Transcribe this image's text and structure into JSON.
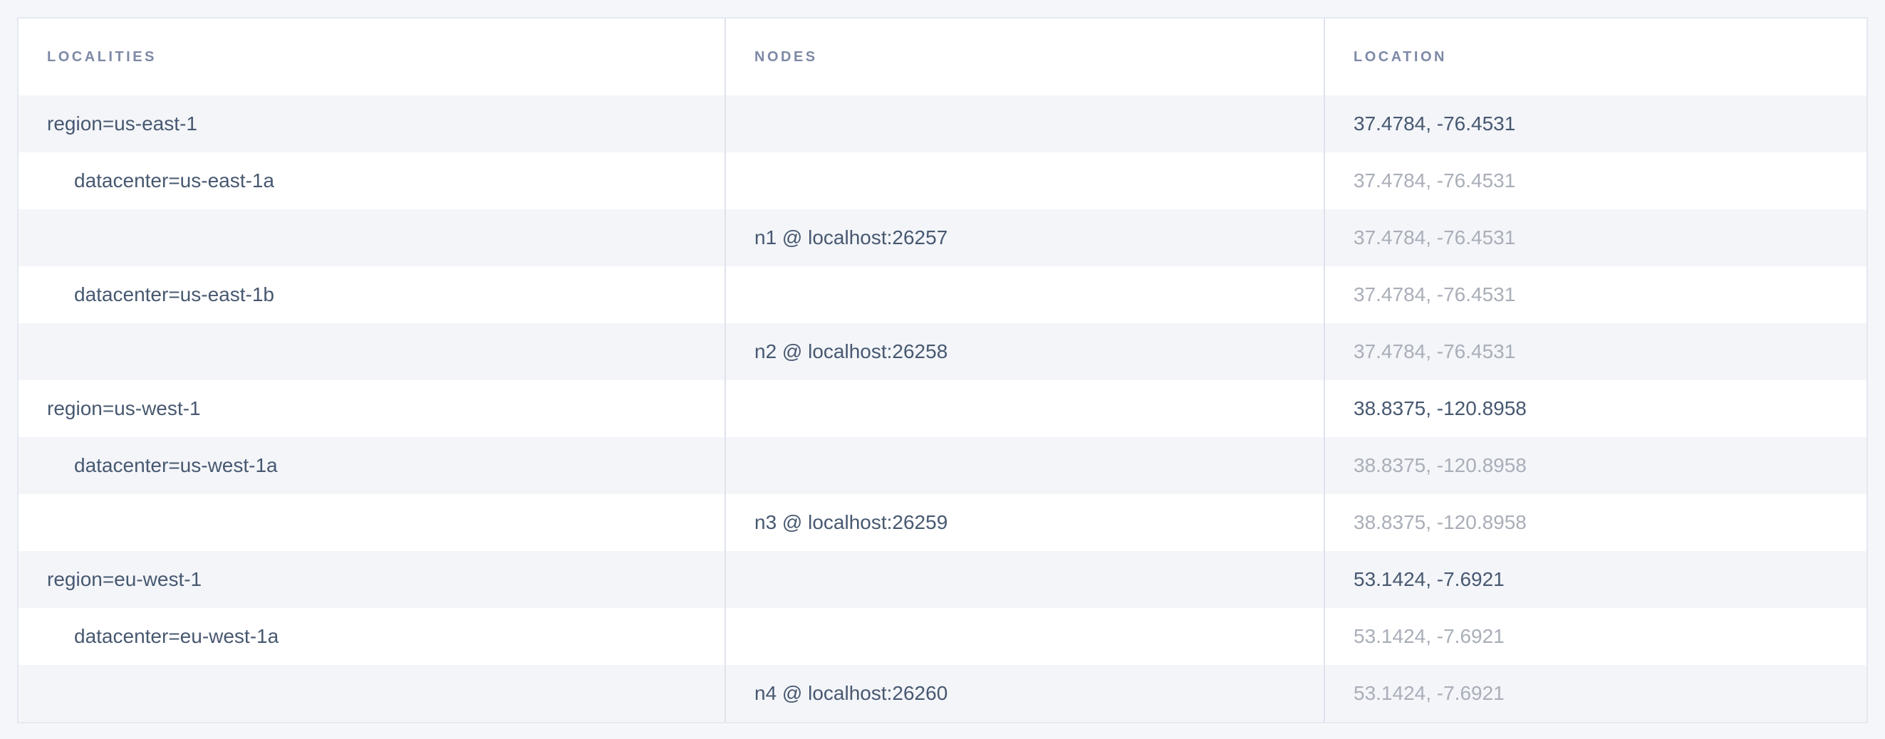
{
  "page": {
    "background_color": "#f4f6fa",
    "card_border_color": "#e4e9f1",
    "zebra_row_color": "#f3f5f9",
    "divider_color": "#dde2ec",
    "text_dark_color": "#475870",
    "text_muted_color": "#a9aeb8",
    "header_text_color": "#7e89a6"
  },
  "table": {
    "columns": [
      {
        "key": "localities",
        "label": "LOCALITIES"
      },
      {
        "key": "nodes",
        "label": "NODES"
      },
      {
        "key": "location",
        "label": "LOCATION"
      }
    ],
    "rows": [
      {
        "locality": "region=us-east-1",
        "indent": 0,
        "node": "",
        "location": "37.4784, -76.4531",
        "location_muted": false
      },
      {
        "locality": "datacenter=us-east-1a",
        "indent": 1,
        "node": "",
        "location": "37.4784, -76.4531",
        "location_muted": true
      },
      {
        "locality": "",
        "indent": 0,
        "node": "n1 @ localhost:26257",
        "location": "37.4784, -76.4531",
        "location_muted": true
      },
      {
        "locality": "datacenter=us-east-1b",
        "indent": 1,
        "node": "",
        "location": "37.4784, -76.4531",
        "location_muted": true
      },
      {
        "locality": "",
        "indent": 0,
        "node": "n2 @ localhost:26258",
        "location": "37.4784, -76.4531",
        "location_muted": true
      },
      {
        "locality": "region=us-west-1",
        "indent": 0,
        "node": "",
        "location": "38.8375, -120.8958",
        "location_muted": false
      },
      {
        "locality": "datacenter=us-west-1a",
        "indent": 1,
        "node": "",
        "location": "38.8375, -120.8958",
        "location_muted": true
      },
      {
        "locality": "",
        "indent": 0,
        "node": "n3 @ localhost:26259",
        "location": "38.8375, -120.8958",
        "location_muted": true
      },
      {
        "locality": "region=eu-west-1",
        "indent": 0,
        "node": "",
        "location": "53.1424, -7.6921",
        "location_muted": false
      },
      {
        "locality": "datacenter=eu-west-1a",
        "indent": 1,
        "node": "",
        "location": "53.1424, -7.6921",
        "location_muted": true
      },
      {
        "locality": "",
        "indent": 0,
        "node": "n4 @ localhost:26260",
        "location": "53.1424, -7.6921",
        "location_muted": true
      }
    ]
  }
}
